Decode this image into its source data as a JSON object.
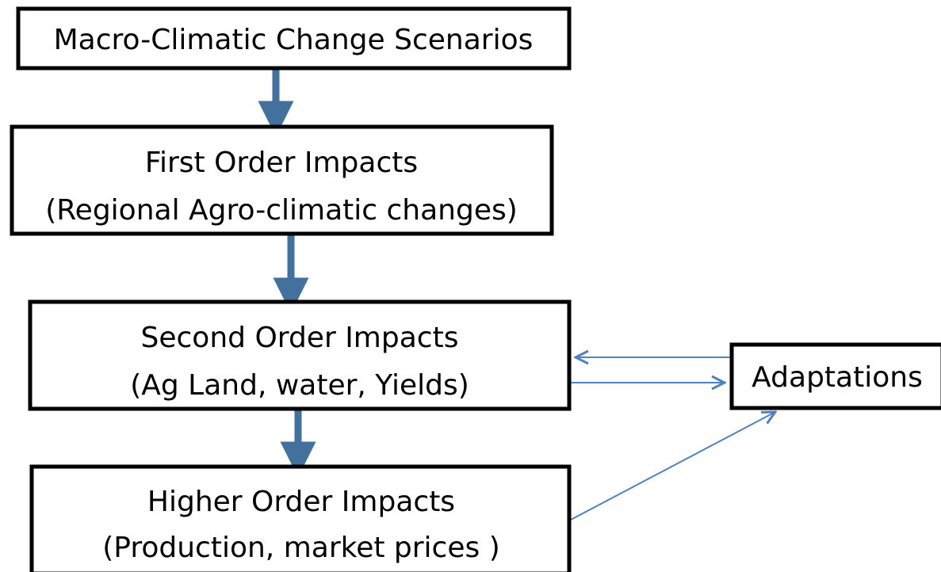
{
  "nodes": [
    {
      "lines": [
        "Macro-Climatic Change Scenarios"
      ]
    },
    {
      "lines": [
        "First Order Impacts",
        "(Regional Agro-climatic changes)"
      ]
    },
    {
      "lines": [
        "Second Order Impacts",
        "(Ag Land, water, Yields)"
      ]
    },
    {
      "lines": [
        "Higher Order Impacts",
        "(Production, market prices )"
      ]
    },
    {
      "lines": [
        "Adaptations"
      ]
    }
  ]
}
